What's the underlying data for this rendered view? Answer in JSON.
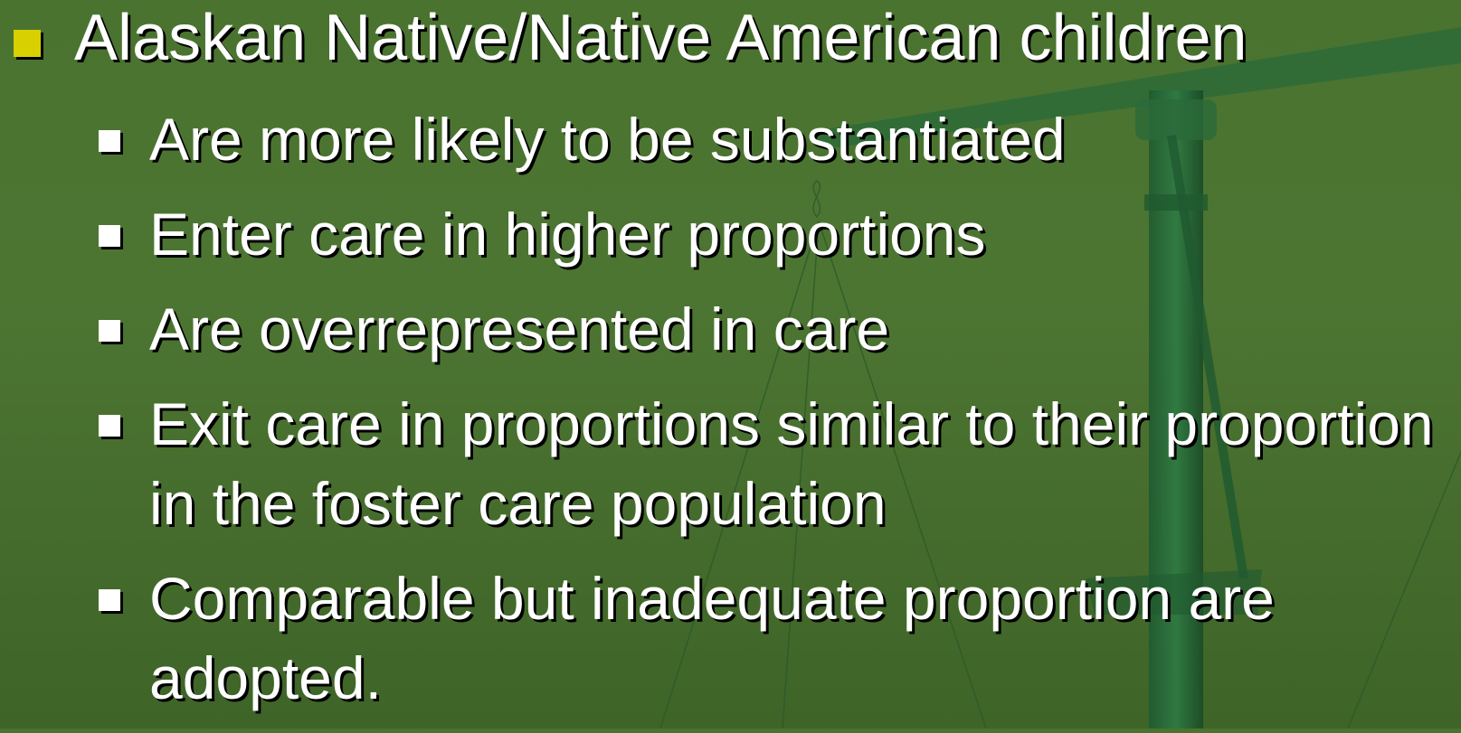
{
  "slide": {
    "bullet": "Alaskan Native/Native American children",
    "sub_bullets": [
      "Are more likely to be substantiated",
      "Enter care in higher proportions",
      "Are overrepresented in care",
      "Exit care in proportions similar to their proportion in the foster care population",
      "Comparable but inadequate proportion are adopted."
    ]
  }
}
